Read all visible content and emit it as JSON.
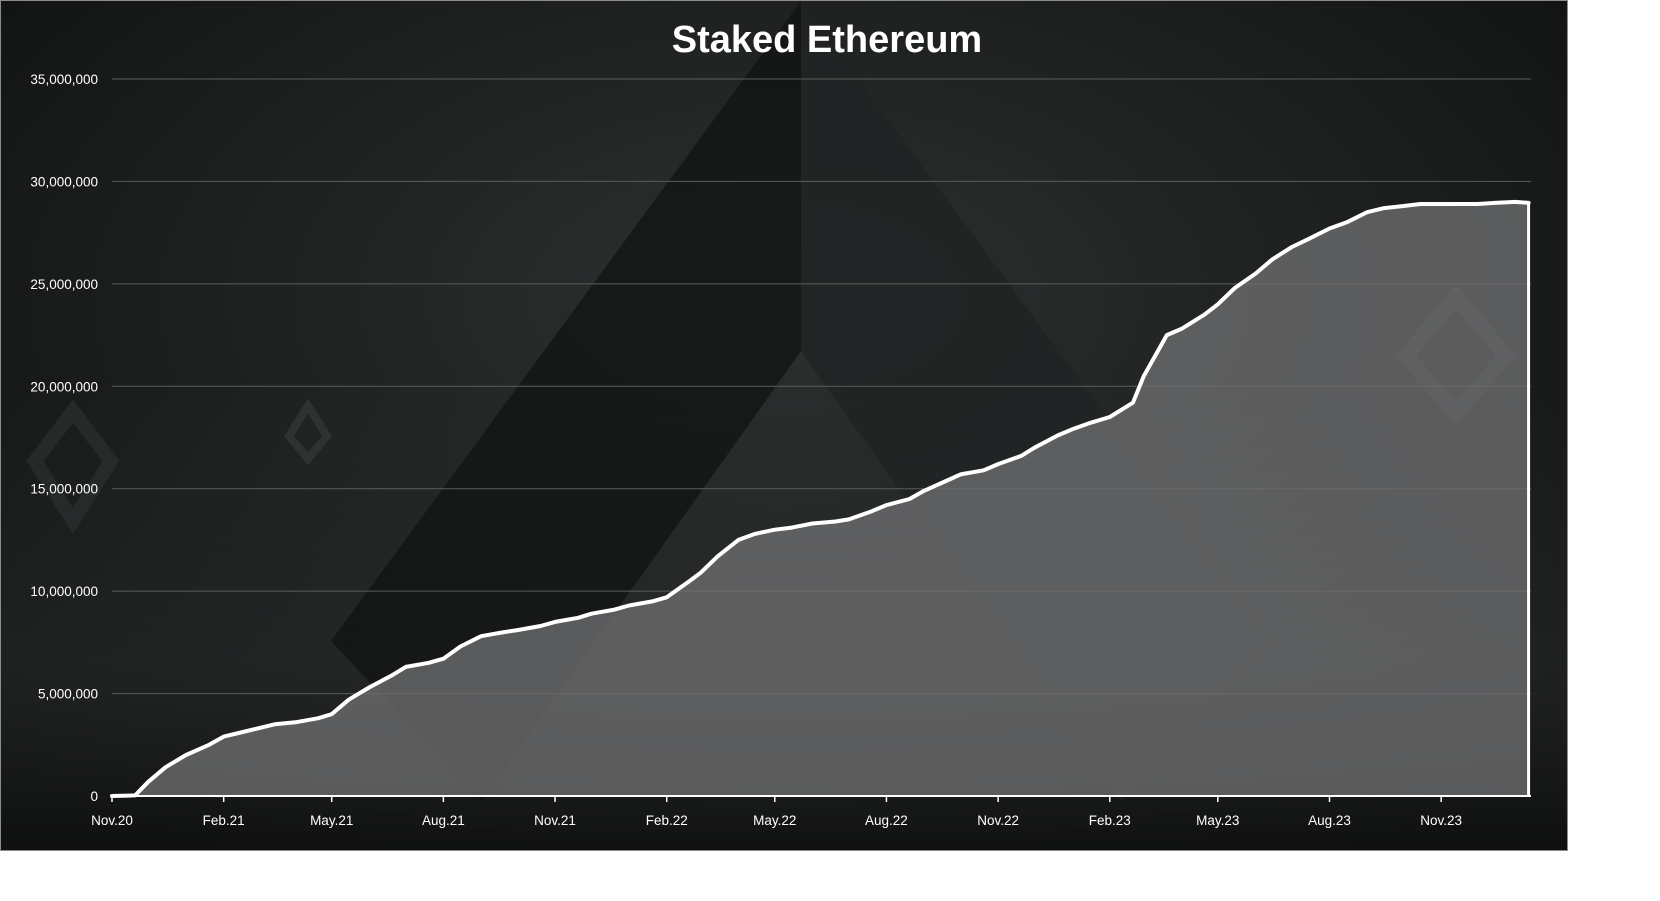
{
  "chart_data": {
    "type": "area",
    "title": "Staked Ethereum",
    "xlabel": "",
    "ylabel": "",
    "ylim": [
      0,
      35000000
    ],
    "y_ticks": [
      0,
      5000000,
      10000000,
      15000000,
      20000000,
      25000000,
      30000000,
      35000000
    ],
    "y_tick_labels": [
      "0",
      "5,000,000",
      "10,000,000",
      "15,000,000",
      "20,000,000",
      "25,000,000",
      "30,000,000",
      "35,000,000"
    ],
    "x_tick_labels": [
      "Nov.20",
      "Feb.21",
      "May.21",
      "Aug.21",
      "Nov.21",
      "Feb.22",
      "May.22",
      "Aug.22",
      "Nov.22",
      "Feb.23",
      "May.23",
      "Aug.23",
      "Nov.23"
    ],
    "x_tick_dates": [
      "2020-11-01",
      "2021-02-01",
      "2021-05-01",
      "2021-08-01",
      "2021-11-01",
      "2022-02-01",
      "2022-05-01",
      "2022-08-01",
      "2022-11-01",
      "2023-02-01",
      "2023-05-01",
      "2023-08-01",
      "2023-11-01"
    ],
    "grid": true,
    "legend": "none",
    "series": [
      {
        "x": [
          "2020-11-01",
          "2020-11-20",
          "2020-12-01",
          "2020-12-15",
          "2021-01-01",
          "2021-01-20",
          "2021-02-01",
          "2021-02-15",
          "2021-03-01",
          "2021-03-15",
          "2021-04-01",
          "2021-04-20",
          "2021-05-01",
          "2021-05-15",
          "2021-06-01",
          "2021-06-20",
          "2021-07-01",
          "2021-07-20",
          "2021-08-01",
          "2021-08-15",
          "2021-09-01",
          "2021-09-20",
          "2021-10-01",
          "2021-10-20",
          "2021-11-01",
          "2021-11-20",
          "2021-12-01",
          "2021-12-20",
          "2022-01-01",
          "2022-01-20",
          "2022-02-01",
          "2022-02-20",
          "2022-03-01",
          "2022-03-15",
          "2022-04-01",
          "2022-04-15",
          "2022-05-01",
          "2022-05-15",
          "2022-06-01",
          "2022-06-20",
          "2022-07-01",
          "2022-07-20",
          "2022-08-01",
          "2022-08-20",
          "2022-09-01",
          "2022-09-20",
          "2022-10-01",
          "2022-10-20",
          "2022-11-01",
          "2022-11-20",
          "2022-12-01",
          "2022-12-20",
          "2023-01-01",
          "2023-01-15",
          "2023-02-01",
          "2023-02-20",
          "2023-03-01",
          "2023-03-20",
          "2023-04-01",
          "2023-04-20",
          "2023-05-01",
          "2023-05-15",
          "2023-06-01",
          "2023-06-15",
          "2023-07-01",
          "2023-07-15",
          "2023-08-01",
          "2023-08-15",
          "2023-09-01",
          "2023-09-15",
          "2023-10-01",
          "2023-10-15",
          "2023-11-01",
          "2023-11-20",
          "2023-12-01",
          "2023-12-15",
          "2024-01-01",
          "2024-01-12"
        ],
        "y": [
          0,
          30000,
          700000,
          1400000,
          2000000,
          2500000,
          2900000,
          3100000,
          3300000,
          3500000,
          3600000,
          3800000,
          4000000,
          4700000,
          5300000,
          5900000,
          6300000,
          6500000,
          6700000,
          7300000,
          7800000,
          8000000,
          8100000,
          8300000,
          8500000,
          8700000,
          8900000,
          9100000,
          9300000,
          9500000,
          9700000,
          10500000,
          10900000,
          11700000,
          12500000,
          12800000,
          13000000,
          13100000,
          13300000,
          13400000,
          13500000,
          13900000,
          14200000,
          14500000,
          14900000,
          15400000,
          15700000,
          15900000,
          16200000,
          16600000,
          17000000,
          17600000,
          17900000,
          18200000,
          18500000,
          19200000,
          20500000,
          22500000,
          22800000,
          23500000,
          24000000,
          24800000,
          25500000,
          26200000,
          26800000,
          27200000,
          27700000,
          28000000,
          28500000,
          28700000,
          28800000,
          28900000,
          28900000,
          28900000,
          28900000,
          28950000,
          29000000,
          28950000
        ]
      }
    ],
    "colors": {
      "line": "#ffffff",
      "area_fill": "#6e6e70",
      "background_dark": "#1a1c1c",
      "gridline": "#5a5d5c"
    }
  }
}
